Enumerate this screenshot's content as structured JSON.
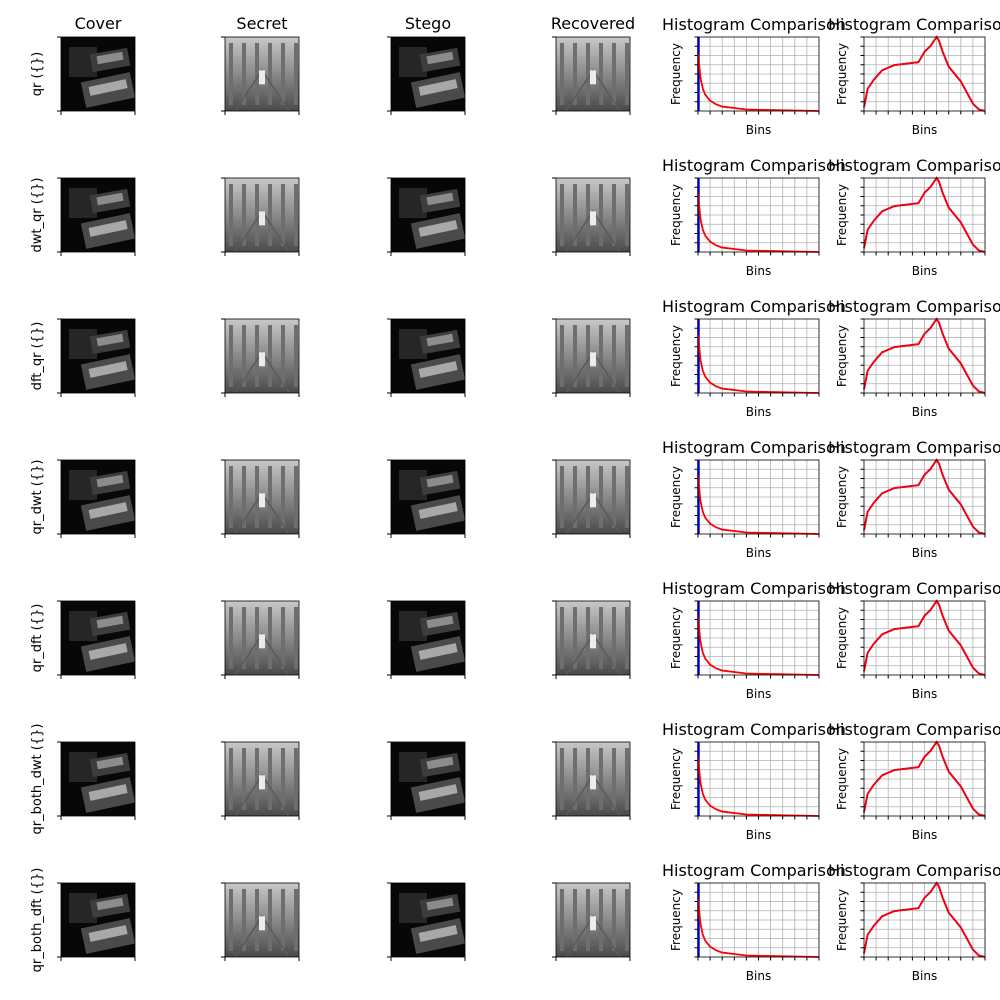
{
  "chart_data": {
    "type": "image-grid-with-histograms",
    "column_titles": [
      "Cover",
      "Secret",
      "Stego",
      "Recovered"
    ],
    "row_labels": [
      "qr ({})",
      "dwt_qr ({})",
      "dft_qr ({})",
      "qr_dwt ({})",
      "qr_dft ({})",
      "qr_both_dwt ({})",
      "qr_both_dft ({})"
    ],
    "histograms": {
      "title": "Histogram Comparison",
      "xlabel": "Bins",
      "ylabel": "Frequency",
      "grid": true,
      "series_colors": [
        "#0000ff",
        "#ff0000"
      ],
      "cover_stego": {
        "x": [
          0,
          2,
          4,
          6,
          10,
          15,
          20,
          30,
          40,
          55,
          70,
          85,
          100
        ],
        "y": [
          1.0,
          0.45,
          0.3,
          0.22,
          0.14,
          0.09,
          0.06,
          0.04,
          0.02,
          0.015,
          0.01,
          0.005,
          0.0
        ],
        "peak_cover": 1.0,
        "peak_stego": 0.8
      },
      "secret_recovered": {
        "x": [
          0,
          3,
          8,
          15,
          25,
          35,
          45,
          50,
          55,
          60,
          62,
          65,
          70,
          80,
          90,
          95,
          100
        ],
        "y": [
          0.05,
          0.3,
          0.42,
          0.55,
          0.62,
          0.64,
          0.66,
          0.8,
          0.88,
          1.0,
          0.95,
          0.8,
          0.6,
          0.4,
          0.1,
          0.02,
          0.0
        ]
      }
    }
  },
  "colors": {
    "cover_dark": "#1a1a1a",
    "secret_light": "#9a9a9a"
  }
}
